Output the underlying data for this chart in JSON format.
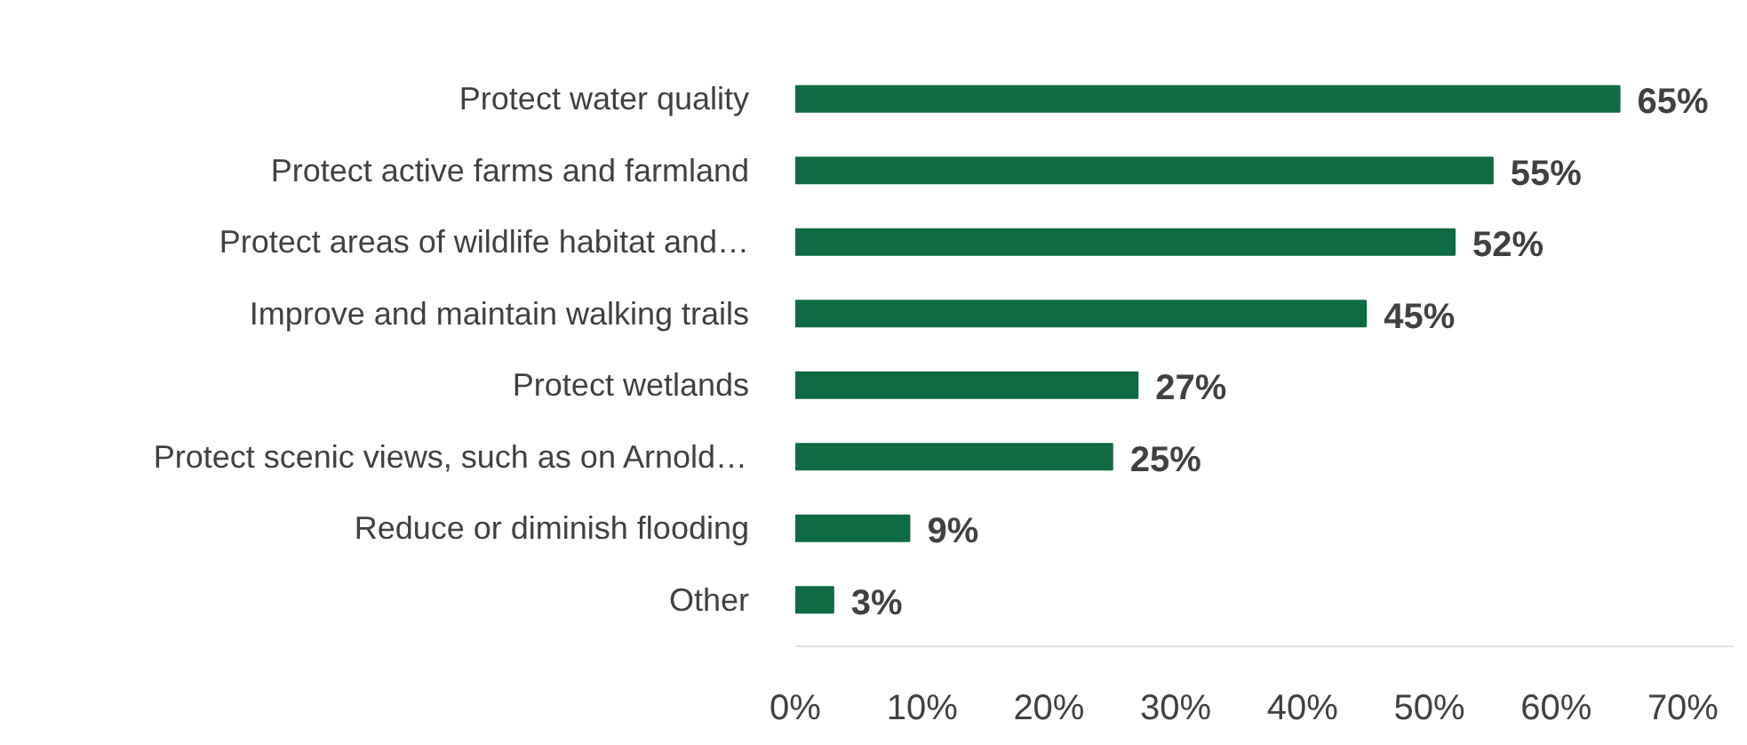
{
  "chart_data": {
    "type": "bar",
    "orientation": "horizontal",
    "categories": [
      "Protect water quality",
      "Protect active farms and farmland",
      "Protect areas of wildlife habitat and…",
      "Improve and maintain walking trails",
      "Protect wetlands",
      "Protect scenic views, such as on Arnold…",
      "Reduce or diminish flooding",
      "Other"
    ],
    "values": [
      65,
      55,
      52,
      45,
      27,
      25,
      9,
      3
    ],
    "color": "#0e6b43",
    "value_labels": [
      "65%",
      "55%",
      "52%",
      "45%",
      "27%",
      "25%",
      "9%",
      "3%"
    ],
    "xlim": [
      0,
      74
    ],
    "xticks": [
      {
        "value": 0,
        "label": "0%"
      },
      {
        "value": 10,
        "label": "10%"
      },
      {
        "value": 20,
        "label": "20%"
      },
      {
        "value": 30,
        "label": "30%"
      },
      {
        "value": 40,
        "label": "40%"
      },
      {
        "value": 50,
        "label": "50%"
      },
      {
        "value": 60,
        "label": "60%"
      },
      {
        "value": 70,
        "label": "70%"
      }
    ],
    "grid": false
  }
}
